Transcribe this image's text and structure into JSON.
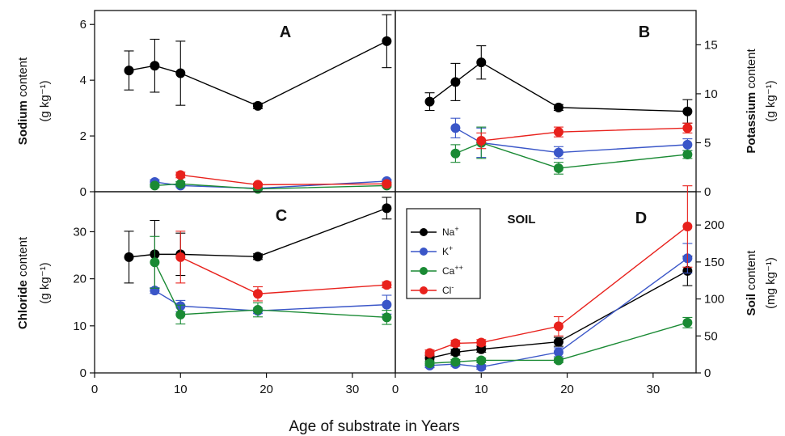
{
  "x_axis_label": "Age of substrate in Years",
  "colors": {
    "Na": "#000000",
    "K": "#3a56c8",
    "Ca": "#1a8a34",
    "Cl": "#e8211c"
  },
  "chart_data": [
    {
      "panel": "A",
      "type": "line",
      "xlim": [
        0,
        35
      ],
      "ylim": [
        0,
        6.5
      ],
      "yticks": [
        0,
        2,
        4,
        6
      ],
      "ylabel_bold": "Sodium",
      "ylabel_rest": " content",
      "yunit": "(g kg⁻¹)",
      "series": [
        {
          "key": "Na",
          "points": [
            [
              4,
              4.35,
              0.7
            ],
            [
              7,
              4.52,
              0.95
            ],
            [
              10,
              4.25,
              1.15
            ],
            [
              19,
              3.08,
              0.1
            ],
            [
              34,
              5.4,
              0.95
            ]
          ]
        },
        {
          "key": "K",
          "points": [
            [
              7,
              0.35,
              0.08
            ],
            [
              10,
              0.22,
              0.05
            ],
            [
              19,
              0.12,
              0.03
            ],
            [
              34,
              0.38,
              0.06
            ]
          ]
        },
        {
          "key": "Ca",
          "points": [
            [
              7,
              0.22,
              0.05
            ],
            [
              10,
              0.28,
              0.08
            ],
            [
              19,
              0.1,
              0.03
            ],
            [
              34,
              0.22,
              0.05
            ]
          ]
        },
        {
          "key": "Cl",
          "points": [
            [
              10,
              0.6,
              0.1
            ],
            [
              19,
              0.25,
              0.05
            ],
            [
              34,
              0.28,
              0.05
            ]
          ]
        }
      ]
    },
    {
      "panel": "B",
      "type": "line",
      "xlim": [
        0,
        35
      ],
      "ylim": [
        0,
        18.5
      ],
      "yticks": [
        0,
        5,
        10,
        15
      ],
      "ylabel_bold": "Potassium",
      "ylabel_rest": " content",
      "yunit": "(g kg⁻¹)",
      "series": [
        {
          "key": "Na",
          "points": [
            [
              4,
              9.2,
              0.9
            ],
            [
              7,
              11.2,
              1.9
            ],
            [
              10,
              13.2,
              1.7
            ],
            [
              19,
              8.6,
              0.3
            ],
            [
              34,
              8.2,
              1.2
            ]
          ]
        },
        {
          "key": "K",
          "points": [
            [
              7,
              6.5,
              1.0
            ],
            [
              10,
              5.0,
              1.5
            ],
            [
              19,
              4.0,
              0.6
            ],
            [
              34,
              4.8,
              0.6
            ]
          ]
        },
        {
          "key": "Ca",
          "points": [
            [
              7,
              3.9,
              0.9
            ],
            [
              10,
              5.0,
              1.6
            ],
            [
              19,
              2.4,
              0.6
            ],
            [
              34,
              3.8,
              0.4
            ]
          ]
        },
        {
          "key": "Cl",
          "points": [
            [
              10,
              5.2,
              0.8
            ],
            [
              19,
              6.1,
              0.5
            ],
            [
              34,
              6.5,
              0.5
            ]
          ]
        }
      ]
    },
    {
      "panel": "C",
      "type": "line",
      "xlim": [
        0,
        35
      ],
      "ylim": [
        0,
        38.5
      ],
      "yticks": [
        0,
        10,
        20,
        30
      ],
      "ylabel_bold": "Chloride",
      "ylabel_rest": " content",
      "yunit": "(g kg⁻¹)",
      "series": [
        {
          "key": "Na",
          "points": [
            [
              4,
              24.6,
              5.5
            ],
            [
              7,
              25.2,
              7.2
            ],
            [
              10,
              25.2,
              4.5
            ],
            [
              19,
              24.7,
              0.6
            ],
            [
              34,
              35.0,
              2.3
            ]
          ]
        },
        {
          "key": "K",
          "points": [
            [
              7,
              17.5,
              0.6
            ],
            [
              10,
              14.2,
              1.2
            ],
            [
              19,
              13.2,
              0.6
            ],
            [
              34,
              14.5,
              2.0
            ]
          ]
        },
        {
          "key": "Ca",
          "points": [
            [
              7,
              23.5,
              5.5
            ],
            [
              10,
              12.4,
              2.0
            ],
            [
              19,
              13.4,
              1.5
            ],
            [
              34,
              11.8,
              1.5
            ]
          ]
        },
        {
          "key": "Cl",
          "points": [
            [
              10,
              24.6,
              5.5
            ],
            [
              19,
              16.8,
              1.5
            ],
            [
              34,
              18.7,
              0.6
            ]
          ]
        }
      ]
    },
    {
      "panel": "D",
      "type": "line",
      "xlim": [
        0,
        35
      ],
      "ylim": [
        0,
        245
      ],
      "yticks": [
        0,
        50,
        100,
        150,
        200
      ],
      "ylabel_bold": "Soil",
      "ylabel_rest": " content",
      "yunit": "(mg kg⁻¹)",
      "title": "SOIL",
      "legend": {
        "placement": "top-left",
        "entries": [
          {
            "key": "Na",
            "main": "Na",
            "sup": "+"
          },
          {
            "key": "K",
            "main": "K",
            "sup": "+"
          },
          {
            "key": "Ca",
            "main": "Ca",
            "sup": "++"
          },
          {
            "key": "Cl",
            "main": "Cl",
            "sup": "-"
          }
        ]
      },
      "series": [
        {
          "key": "Na",
          "points": [
            [
              4,
              20,
              4
            ],
            [
              7,
              28,
              4
            ],
            [
              10,
              32,
              4
            ],
            [
              19,
              42,
              6
            ],
            [
              34,
              138,
              20
            ]
          ]
        },
        {
          "key": "K",
          "points": [
            [
              4,
              10,
              3
            ],
            [
              7,
              12,
              3
            ],
            [
              10,
              8,
              3
            ],
            [
              19,
              28,
              6
            ],
            [
              34,
              155,
              20
            ]
          ]
        },
        {
          "key": "Ca",
          "points": [
            [
              4,
              13,
              3
            ],
            [
              7,
              15,
              3
            ],
            [
              10,
              17,
              3
            ],
            [
              19,
              17,
              3
            ],
            [
              34,
              68,
              7
            ]
          ]
        },
        {
          "key": "Cl",
          "points": [
            [
              4,
              27,
              4
            ],
            [
              7,
              40,
              4
            ],
            [
              10,
              41,
              4
            ],
            [
              19,
              63,
              13
            ],
            [
              34,
              198,
              55
            ]
          ]
        }
      ]
    }
  ]
}
